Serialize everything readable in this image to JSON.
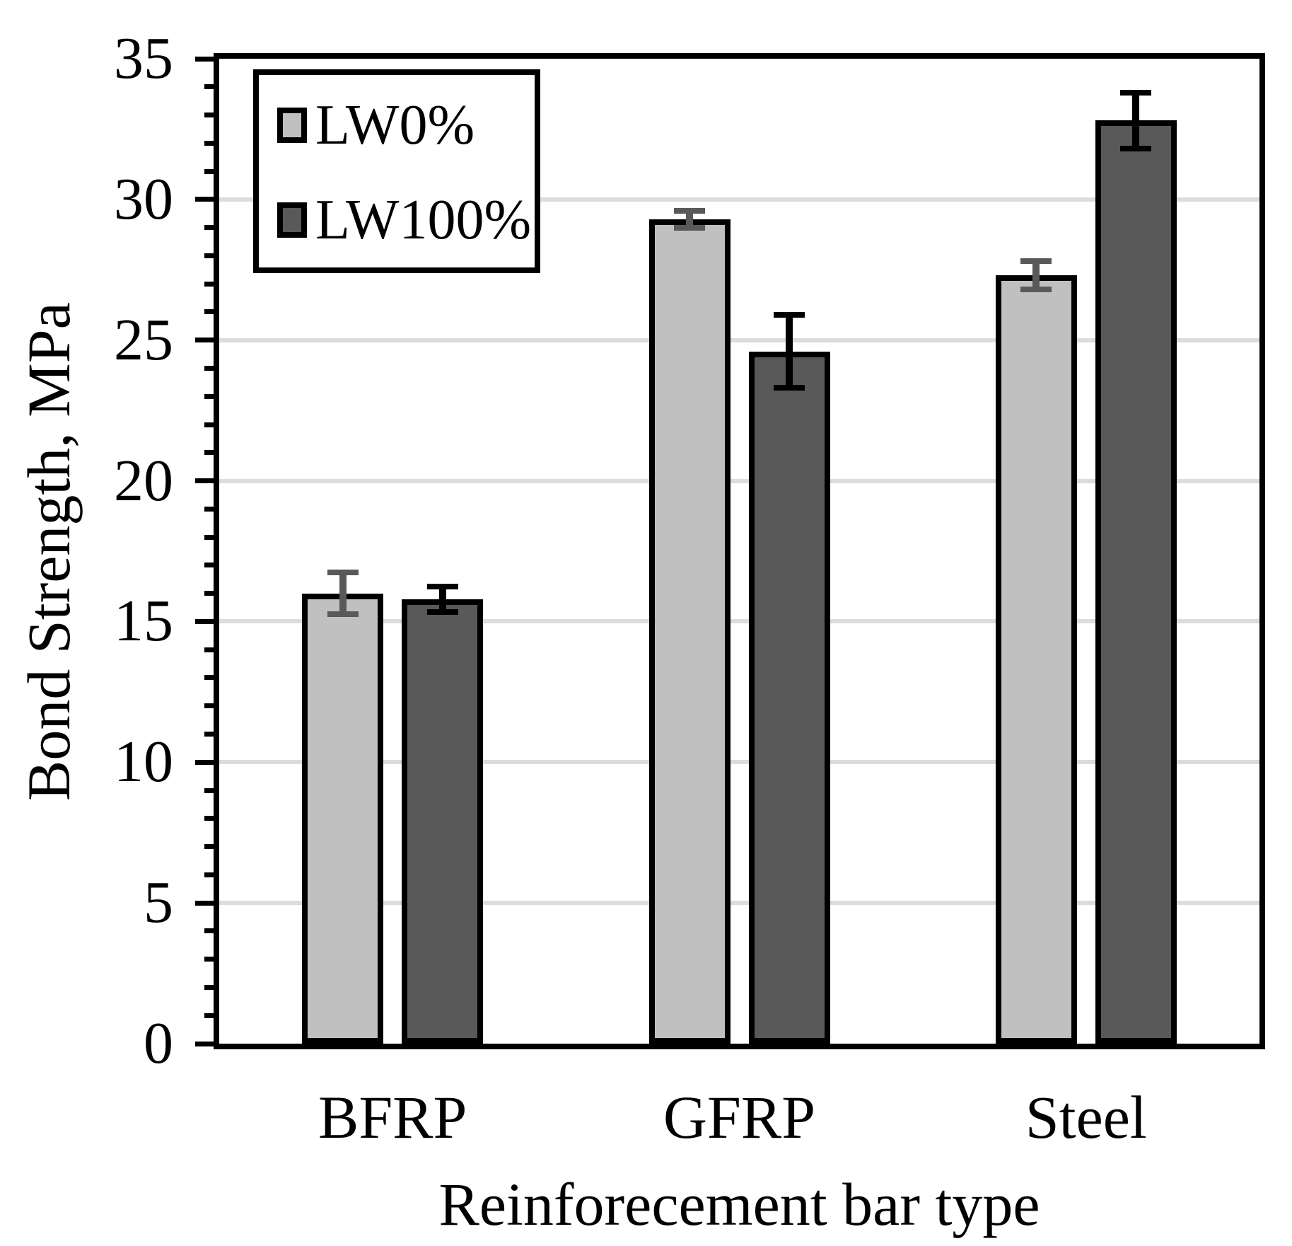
{
  "chart_data": {
    "type": "bar",
    "title": "",
    "categories": [
      "BFRP",
      "GFRP",
      "Steel"
    ],
    "series": [
      {
        "name": "LW0%",
        "values": [
          16.0,
          29.3,
          27.3
        ],
        "errors": [
          0.75,
          0.3,
          0.5
        ],
        "fill": "#c0c0c0",
        "error_color": "#595959"
      },
      {
        "name": "LW100%",
        "values": [
          15.8,
          24.6,
          32.8
        ],
        "errors": [
          0.45,
          1.3,
          1.0
        ],
        "fill": "#595959",
        "error_color": "#000000"
      }
    ],
    "xlabel": "Reinforecement bar type",
    "ylabel": "Bond Strength, MPa",
    "ylim": [
      0,
      35
    ],
    "y_major_step": 5,
    "y_minor_step": 1,
    "y_tick_labels": [
      "0",
      "5",
      "10",
      "15",
      "20",
      "25",
      "30",
      "35"
    ],
    "grid": "horizontal-major",
    "legend_position": "top-left-inside"
  },
  "colors": {
    "background": "#ffffff",
    "frame": "#000000",
    "bar_border": "#000000",
    "gridline": "#dcdcdc",
    "text": "#000000"
  }
}
